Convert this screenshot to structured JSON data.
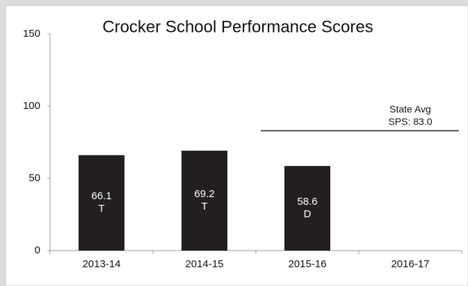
{
  "chart_data": {
    "type": "bar",
    "title": "Crocker School Performance Scores",
    "categories": [
      "2013-14",
      "2014-15",
      "2015-16",
      "2016-17"
    ],
    "values": [
      66.1,
      69.2,
      58.6,
      null
    ],
    "grades": [
      "T",
      "T",
      "D",
      null
    ],
    "color": "#231f20",
    "ylim": [
      0,
      150
    ],
    "yticks": [
      0,
      50,
      100,
      150
    ],
    "reference_line": {
      "value": 83.0,
      "label": [
        "State Avg",
        "SPS: 83.0"
      ]
    }
  }
}
